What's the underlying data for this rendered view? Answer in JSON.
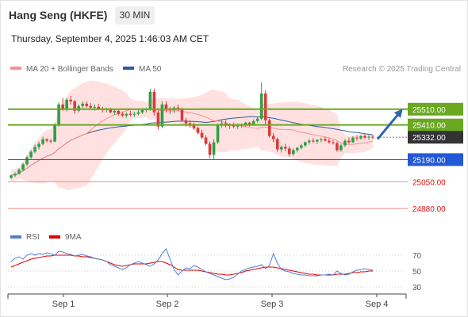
{
  "header": {
    "title": "Hang Seng (HKFE)",
    "timeframe": "30 MIN",
    "datetime": "Thursday, September 4, 2025 1:46:03 AM CET"
  },
  "legend": {
    "ma20_label": "MA 20 + Bollinger Bands",
    "ma50_label": "MA 50",
    "credit": "Research © 2025 Trading Central"
  },
  "colors": {
    "ma20": "#ff8f8f",
    "ma50": "#2f5d9e",
    "bollinger_fill": "#ffdcdc",
    "candle_up": "#2e9e45",
    "candle_down": "#d83a3a",
    "resistance": "#6aa821",
    "support": "#2358d6",
    "support_weak": "#f08a8a",
    "current_price": "#333333",
    "arrow": "#2f66b0",
    "rsi": "#4f7fd6",
    "rsi_ma": "#e00000"
  },
  "chart_data": [
    {
      "type": "candlestick",
      "title": "",
      "x_ticks": [
        "Sep 1",
        "Sep 2",
        "Sep 3",
        "Sep 4"
      ],
      "ylim": [
        24820,
        25700
      ],
      "series": [
        {
          "name": "MA 20 + Bollinger Bands"
        },
        {
          "name": "MA 50"
        }
      ],
      "levels": [
        {
          "label": "25510.00",
          "value": 25510,
          "kind": "resistance"
        },
        {
          "label": "25410.00",
          "value": 25410,
          "kind": "resistance"
        },
        {
          "label": "25332.00",
          "value": 25332,
          "kind": "current"
        },
        {
          "label": "25190.00",
          "value": 25190,
          "kind": "support"
        },
        {
          "label": "25050.00",
          "value": 25050,
          "kind": "support_weak"
        },
        {
          "label": "24880.00",
          "value": 24880,
          "kind": "support_weak"
        }
      ],
      "forecast_arrow": {
        "from": 25320,
        "to": 25510
      },
      "candles": [
        [
          25075,
          25095,
          25065,
          25090
        ],
        [
          25090,
          25110,
          25080,
          25100
        ],
        [
          25100,
          25135,
          25095,
          25125
        ],
        [
          25125,
          25170,
          25115,
          25160
        ],
        [
          25160,
          25215,
          25150,
          25205
        ],
        [
          25205,
          25250,
          25195,
          25240
        ],
        [
          25240,
          25285,
          25230,
          25270
        ],
        [
          25270,
          25305,
          25255,
          25290
        ],
        [
          25290,
          25335,
          25280,
          25320
        ],
        [
          25320,
          25325,
          25300,
          25310
        ],
        [
          25310,
          25320,
          25295,
          25305
        ],
        [
          25305,
          25420,
          25300,
          25410
        ],
        [
          25410,
          25555,
          25400,
          25540
        ],
        [
          25540,
          25580,
          25500,
          25510
        ],
        [
          25510,
          25580,
          25495,
          25570
        ],
        [
          25570,
          25595,
          25540,
          25560
        ],
        [
          25560,
          25570,
          25480,
          25500
        ],
        [
          25500,
          25540,
          25490,
          25530
        ],
        [
          25530,
          25560,
          25515,
          25545
        ],
        [
          25545,
          25560,
          25520,
          25530
        ],
        [
          25530,
          25550,
          25510,
          25520
        ],
        [
          25520,
          25540,
          25500,
          25525
        ],
        [
          25525,
          25545,
          25505,
          25510
        ],
        [
          25510,
          25525,
          25490,
          25505
        ],
        [
          25505,
          25520,
          25490,
          25510
        ],
        [
          25510,
          25520,
          25485,
          25490
        ],
        [
          25490,
          25510,
          25475,
          25500
        ],
        [
          25500,
          25505,
          25470,
          25480
        ],
        [
          25480,
          25495,
          25460,
          25470
        ],
        [
          25470,
          25490,
          25455,
          25480
        ],
        [
          25480,
          25500,
          25465,
          25475
        ],
        [
          25475,
          25495,
          25460,
          25480
        ],
        [
          25480,
          25505,
          25470,
          25490
        ],
        [
          25490,
          25515,
          25480,
          25505
        ],
        [
          25505,
          25520,
          25490,
          25510
        ],
        [
          25510,
          25640,
          25500,
          25620
        ],
        [
          25620,
          25640,
          25470,
          25490
        ],
        [
          25490,
          25500,
          25380,
          25400
        ],
        [
          25400,
          25560,
          25390,
          25540
        ],
        [
          25540,
          25560,
          25490,
          25510
        ],
        [
          25510,
          25525,
          25480,
          25505
        ],
        [
          25505,
          25530,
          25485,
          25520
        ],
        [
          25520,
          25540,
          25500,
          25510
        ],
        [
          25510,
          25520,
          25430,
          25440
        ],
        [
          25440,
          25455,
          25400,
          25420
        ],
        [
          25420,
          25440,
          25395,
          25410
        ],
        [
          25410,
          25425,
          25380,
          25390
        ],
        [
          25390,
          25400,
          25350,
          25360
        ],
        [
          25360,
          25380,
          25320,
          25330
        ],
        [
          25330,
          25345,
          25280,
          25290
        ],
        [
          25290,
          25305,
          25200,
          25220
        ],
        [
          25220,
          25320,
          25195,
          25300
        ],
        [
          25300,
          25420,
          25290,
          25410
        ],
        [
          25410,
          25440,
          25390,
          25420
        ],
        [
          25420,
          25440,
          25395,
          25405
        ],
        [
          25405,
          25420,
          25385,
          25410
        ],
        [
          25410,
          25425,
          25390,
          25400
        ],
        [
          25400,
          25420,
          25385,
          25405
        ],
        [
          25405,
          25420,
          25390,
          25415
        ],
        [
          25415,
          25430,
          25400,
          25425
        ],
        [
          25425,
          25430,
          25400,
          25415
        ],
        [
          25415,
          25445,
          25405,
          25435
        ],
        [
          25435,
          25460,
          25425,
          25450
        ],
        [
          25450,
          25680,
          25440,
          25610
        ],
        [
          25610,
          25630,
          25410,
          25440
        ],
        [
          25440,
          25450,
          25330,
          25340
        ],
        [
          25340,
          25360,
          25300,
          25320
        ],
        [
          25320,
          25330,
          25240,
          25255
        ],
        [
          25255,
          25280,
          25235,
          25270
        ],
        [
          25270,
          25290,
          25245,
          25260
        ],
        [
          25260,
          25275,
          25210,
          25225
        ],
        [
          25225,
          25260,
          25215,
          25250
        ],
        [
          25250,
          25270,
          25235,
          25265
        ],
        [
          25265,
          25290,
          25255,
          25280
        ],
        [
          25280,
          25305,
          25270,
          25300
        ],
        [
          25300,
          25320,
          25285,
          25310
        ],
        [
          25310,
          25325,
          25295,
          25305
        ],
        [
          25305,
          25320,
          25290,
          25315
        ],
        [
          25315,
          25330,
          25300,
          25320
        ],
        [
          25320,
          25335,
          25305,
          25310
        ],
        [
          25310,
          25325,
          25290,
          25300
        ],
        [
          25300,
          25315,
          25285,
          25295
        ],
        [
          25295,
          25305,
          25240,
          25250
        ],
        [
          25250,
          25290,
          25240,
          25280
        ],
        [
          25280,
          25320,
          25270,
          25310
        ],
        [
          25310,
          25330,
          25290,
          25300
        ],
        [
          25300,
          25340,
          25295,
          25330
        ],
        [
          25330,
          25345,
          25310,
          25325
        ],
        [
          25325,
          25345,
          25315,
          25340
        ],
        [
          25340,
          25350,
          25320,
          25330
        ],
        [
          25330,
          25345,
          25315,
          25335
        ],
        [
          25335,
          25345,
          25320,
          25332
        ]
      ]
    },
    {
      "type": "line",
      "title": "",
      "ylim": [
        20,
        80
      ],
      "y_ticks": [
        70,
        50,
        30
      ],
      "series": [
        {
          "name": "RSI",
          "values": [
            62,
            66,
            68,
            65,
            70,
            72,
            70,
            72,
            71,
            73,
            72,
            70,
            75,
            74,
            72,
            71,
            69,
            70,
            71,
            69,
            68,
            66,
            65,
            64,
            62,
            58,
            56,
            54,
            52,
            54,
            58,
            60,
            62,
            60,
            58,
            56,
            59,
            64,
            72,
            78,
            65,
            52,
            45,
            50,
            54,
            53,
            57,
            55,
            52,
            49,
            47,
            45,
            43,
            41,
            39,
            40,
            42,
            46,
            50,
            52,
            54,
            55,
            56,
            58,
            53,
            57,
            72,
            60,
            52,
            50,
            49,
            47,
            46,
            45,
            45,
            44,
            44,
            44,
            45,
            45,
            46,
            45,
            50,
            47,
            45,
            46,
            49,
            51,
            52,
            53,
            52,
            51
          ]
        },
        {
          "name": "9MA",
          "values": [
            55,
            57,
            59,
            61,
            63,
            65,
            66,
            67,
            68,
            69,
            69,
            70,
            70,
            70,
            70,
            70,
            69,
            69,
            68,
            68,
            67,
            66,
            65,
            64,
            62,
            60,
            58,
            57,
            56,
            57,
            58,
            59,
            59,
            59,
            59,
            60,
            61,
            62,
            62,
            60,
            58,
            55,
            52,
            51,
            51,
            51,
            51,
            51,
            50,
            49,
            48,
            47,
            46,
            46,
            45,
            45,
            46,
            47,
            48,
            50,
            51,
            52,
            53,
            54,
            55,
            55,
            55,
            54,
            53,
            52,
            51,
            50,
            49,
            48,
            47,
            46,
            46,
            45,
            45,
            45,
            45,
            45,
            46,
            46,
            46,
            47,
            48,
            48,
            49,
            49,
            50,
            50
          ]
        }
      ]
    }
  ]
}
